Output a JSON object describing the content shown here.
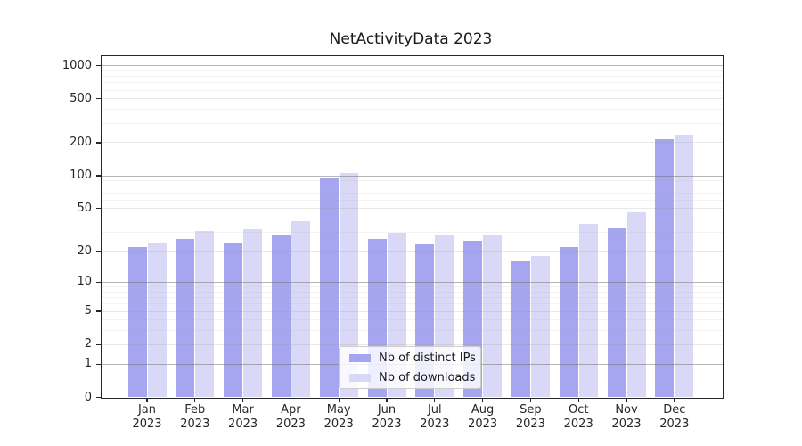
{
  "chart_data": {
    "type": "bar",
    "title": "NetActivityData 2023",
    "categories": [
      "Jan",
      "Feb",
      "Mar",
      "Apr",
      "May",
      "Jun",
      "Jul",
      "Aug",
      "Sep",
      "Oct",
      "Nov",
      "Dec"
    ],
    "x_year": "2023",
    "series": [
      {
        "name": "Nb of distinct IPs",
        "color": "#a6a6f0",
        "values": [
          22,
          26,
          24,
          28,
          97,
          26,
          23,
          25,
          16,
          22,
          33,
          215
        ]
      },
      {
        "name": "Nb of downloads",
        "color": "#d9d9f7",
        "values": [
          24,
          31,
          32,
          38,
          105,
          30,
          28,
          28,
          18,
          36,
          46,
          235
        ]
      }
    ],
    "yscale": "log1p",
    "ylim": [
      0,
      1228
    ],
    "y_major_ticks": [
      0,
      1,
      2,
      5,
      10,
      20,
      50,
      100,
      200,
      500,
      1000
    ],
    "y_minor_ticks": [
      3,
      4,
      6,
      7,
      8,
      9,
      30,
      40,
      60,
      70,
      80,
      90,
      300,
      400,
      600,
      700,
      800,
      900
    ],
    "grid": true,
    "legend_position": "lower center",
    "xlabel": "",
    "ylabel": ""
  },
  "legend": {
    "items": [
      {
        "label": "Nb of distinct IPs",
        "color": "#a6a6f0"
      },
      {
        "label": "Nb of downloads",
        "color": "#d9d9f7"
      }
    ]
  },
  "colors": {
    "background": "#ffffff",
    "spine": "#262626",
    "tick_label": "#262626",
    "grid_power10": "#b9b9b9",
    "grid_labeled": "#e3e3e3",
    "grid_minor": "#eeeeee"
  }
}
